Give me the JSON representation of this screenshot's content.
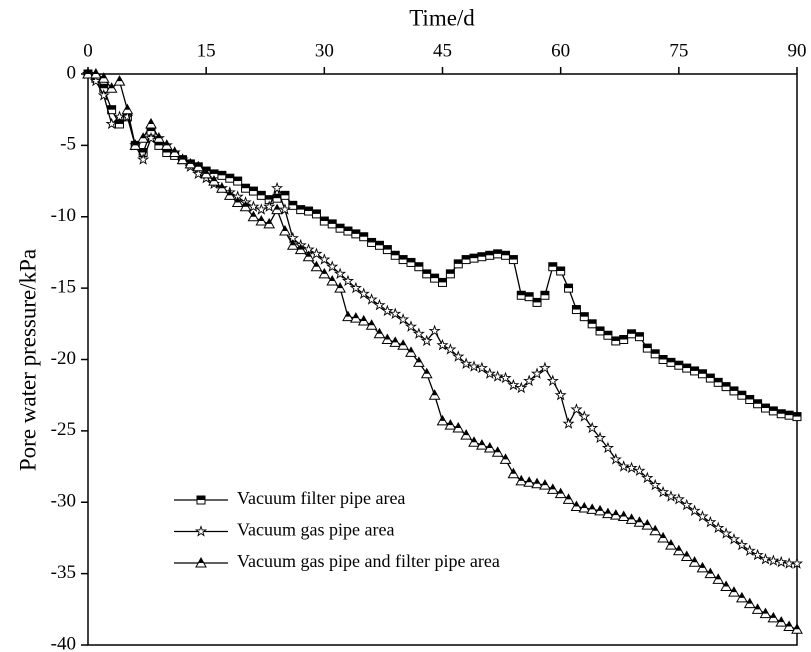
{
  "chart_data": {
    "type": "line",
    "x_label": "Time/d",
    "y_label": "Pore water pressure/kPa",
    "x": [
      0,
      1,
      2,
      3,
      4,
      5,
      6,
      7,
      8,
      9,
      10,
      11,
      12,
      13,
      14,
      15,
      16,
      17,
      18,
      19,
      20,
      21,
      22,
      23,
      24,
      25,
      26,
      27,
      28,
      29,
      30,
      31,
      32,
      33,
      34,
      35,
      36,
      37,
      38,
      39,
      40,
      41,
      42,
      43,
      44,
      45,
      46,
      47,
      48,
      49,
      50,
      51,
      52,
      53,
      54,
      55,
      56,
      57,
      58,
      59,
      60,
      61,
      62,
      63,
      64,
      65,
      66,
      67,
      68,
      69,
      70,
      71,
      72,
      73,
      74,
      75,
      76,
      77,
      78,
      79,
      80,
      81,
      82,
      83,
      84,
      85,
      86,
      87,
      88,
      89,
      90
    ],
    "series": [
      {
        "name": "Vacuum filter pipe area",
        "color": "#000000",
        "marker": "square",
        "values": [
          0,
          -0.3,
          -1,
          -2.5,
          -3.5,
          -3,
          -5,
          -5.5,
          -4,
          -5,
          -5.5,
          -5.7,
          -6,
          -6.3,
          -6.5,
          -6.8,
          -7,
          -7.1,
          -7.3,
          -7.5,
          -8,
          -8.2,
          -8.5,
          -8.8,
          -8.7,
          -8.5,
          -9.2,
          -9.5,
          -9.6,
          -9.8,
          -10.3,
          -10.5,
          -10.8,
          -11,
          -11.2,
          -11.4,
          -11.8,
          -12,
          -12.3,
          -12.7,
          -13,
          -13.2,
          -13.5,
          -14,
          -14.3,
          -14.6,
          -14,
          -13.3,
          -13,
          -12.9,
          -12.8,
          -12.7,
          -12.6,
          -12.7,
          -13,
          -15.5,
          -15.6,
          -16,
          -15.5,
          -13.5,
          -13.8,
          -15,
          -16.5,
          -17,
          -17.5,
          -18,
          -18.3,
          -18.7,
          -18.6,
          -18.2,
          -18.4,
          -19.2,
          -19.6,
          -20,
          -20.2,
          -20.4,
          -20.6,
          -20.8,
          -21,
          -21.3,
          -21.6,
          -21.9,
          -22.2,
          -22.5,
          -22.8,
          -23.1,
          -23.4,
          -23.6,
          -23.8,
          -23.9,
          -24
        ]
      },
      {
        "name": "Vacuum gas pipe area",
        "color": "#000000",
        "marker": "star",
        "values": [
          0,
          -0.5,
          -1.5,
          -3.5,
          -3,
          -3,
          -5,
          -6,
          -4.5,
          -4.5,
          -5,
          -5.5,
          -6,
          -6.5,
          -7,
          -7.3,
          -7.7,
          -8,
          -8.3,
          -8.6,
          -9,
          -9.3,
          -9.5,
          -9.3,
          -8,
          -9.5,
          -11.5,
          -12,
          -12.3,
          -12.6,
          -13,
          -13.5,
          -14,
          -14.5,
          -15,
          -15.4,
          -15.8,
          -16.2,
          -16.6,
          -16.8,
          -17.2,
          -17.7,
          -18.2,
          -18.7,
          -18,
          -19,
          -19.3,
          -19.8,
          -20.3,
          -20.5,
          -20.6,
          -21,
          -21.2,
          -21.3,
          -21.8,
          -22,
          -21.5,
          -21,
          -20.6,
          -21.5,
          -22.5,
          -24.5,
          -23.5,
          -24,
          -24.8,
          -25.5,
          -26.2,
          -27,
          -27.5,
          -27.6,
          -27.8,
          -28.3,
          -28.8,
          -29.3,
          -29.6,
          -29.8,
          -30.2,
          -30.6,
          -31,
          -31.4,
          -31.8,
          -32.2,
          -32.6,
          -33,
          -33.4,
          -33.7,
          -34,
          -34.1,
          -34.2,
          -34.3,
          -34.3
        ]
      },
      {
        "name": "Vacuum gas pipe and filter pipe area",
        "color": "#000000",
        "marker": "triangle",
        "values": [
          0,
          0,
          -0.3,
          -1,
          -0.5,
          -2.5,
          -5,
          -4.5,
          -3.5,
          -4.5,
          -5,
          -5.5,
          -6,
          -6.3,
          -6.5,
          -7,
          -7.5,
          -8,
          -8.5,
          -9,
          -9.3,
          -10,
          -10.3,
          -10.5,
          -9.5,
          -11,
          -12,
          -12.3,
          -12.8,
          -13.5,
          -14,
          -14.5,
          -15,
          -17,
          -17.1,
          -17.3,
          -17.6,
          -18.2,
          -18.6,
          -18.8,
          -19,
          -19.5,
          -20.2,
          -21,
          -22.5,
          -24.3,
          -24.6,
          -24.8,
          -25.3,
          -25.8,
          -26,
          -26.2,
          -26.5,
          -27,
          -28,
          -28.5,
          -28.6,
          -28.7,
          -28.8,
          -29.1,
          -29.4,
          -29.8,
          -30.3,
          -30.4,
          -30.5,
          -30.6,
          -30.8,
          -30.9,
          -31,
          -31.2,
          -31.4,
          -31.6,
          -32,
          -32.5,
          -33,
          -33.4,
          -33.8,
          -34.2,
          -34.6,
          -35,
          -35.4,
          -35.9,
          -36.3,
          -36.7,
          -37.1,
          -37.5,
          -37.8,
          -38.1,
          -38.4,
          -38.7,
          -38.9
        ]
      }
    ],
    "xlim": [
      0,
      90
    ],
    "xticks": [
      0,
      15,
      30,
      45,
      60,
      75,
      90
    ],
    "ylim": [
      -40,
      0
    ],
    "yticks": [
      0,
      -5,
      -10,
      -15,
      -20,
      -25,
      -30,
      -35,
      -40
    ],
    "x_axis_position": "top",
    "grid": false,
    "legend": "lower left"
  }
}
